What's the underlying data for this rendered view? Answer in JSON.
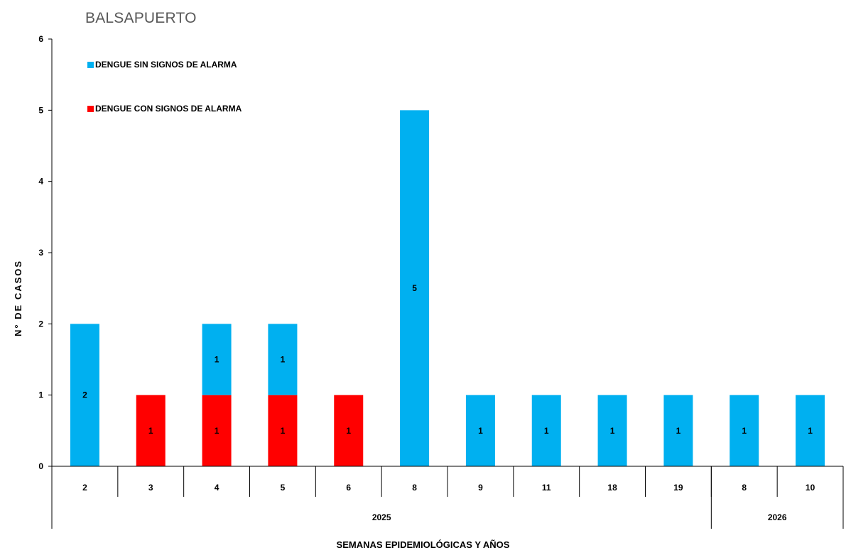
{
  "chart_data": {
    "type": "bar",
    "stacked": true,
    "title": "BALSAPUERTO",
    "xlabel": "SEMANAS EPIDEMIOLÓGICAS  Y AÑOS",
    "ylabel": "N° DE CASOS",
    "ylim": [
      0,
      6
    ],
    "yticks": [
      "0",
      "1",
      "2",
      "3",
      "4",
      "5",
      "6"
    ],
    "categories": [
      "2",
      "3",
      "4",
      "5",
      "6",
      "8",
      "9",
      "11",
      "18",
      "19",
      "8",
      "10"
    ],
    "years": [
      {
        "label": "2025",
        "count": 10
      },
      {
        "label": "2026",
        "count": 2
      }
    ],
    "series": [
      {
        "name": "DENGUE CON SIGNOS DE ALARMA",
        "color": "#ff0000",
        "values": [
          0,
          1,
          1,
          1,
          1,
          0,
          0,
          0,
          0,
          0,
          0,
          0
        ]
      },
      {
        "name": "DENGUE SIN SIGNOS DE ALARMA",
        "color": "#00b0f0",
        "values": [
          2,
          0,
          1,
          1,
          0,
          5,
          1,
          1,
          1,
          1,
          1,
          1
        ]
      }
    ],
    "legend": [
      {
        "name": "DENGUE SIN SIGNOS DE ALARMA",
        "color": "#00b0f0"
      },
      {
        "name": "DENGUE CON SIGNOS DE ALARMA",
        "color": "#ff0000"
      }
    ],
    "legend_position": "top-left",
    "grid": false
  }
}
